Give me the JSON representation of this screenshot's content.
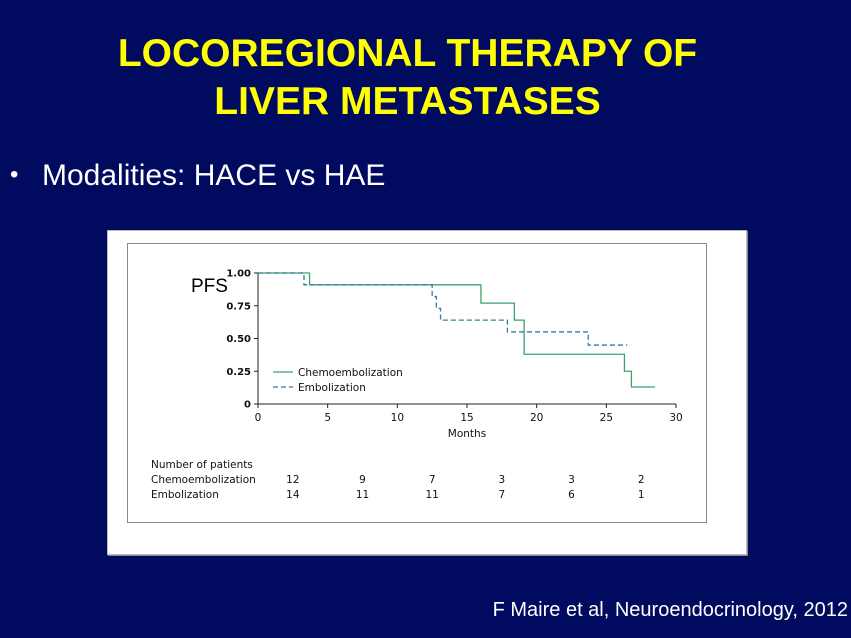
{
  "slide": {
    "title_line1": "LOCOREGIONAL THERAPY OF",
    "title_line2": "LIVER METASTASES",
    "bullet": "Modalities: HACE vs HAE",
    "citation": "F Maire et al, Neuroendocrinology, 2012"
  },
  "chart_data": {
    "type": "line",
    "subtype": "kaplan-meier-step",
    "ylabel": "PFS",
    "xlabel": "Months",
    "xlim": [
      0,
      30
    ],
    "ylim": [
      0,
      1
    ],
    "x_ticks": [
      "0",
      "5",
      "10",
      "15",
      "20",
      "25",
      "30"
    ],
    "y_ticks": [
      "0",
      "0.25",
      "0.50",
      "0.75",
      "1.00"
    ],
    "grid": false,
    "legend": "lower-left",
    "series": [
      {
        "name": "Chemoembolization",
        "color": "#3aa36b",
        "dash": "solid",
        "steps": [
          [
            0,
            1.0
          ],
          [
            3.7,
            0.91
          ],
          [
            16.0,
            0.77
          ],
          [
            18.4,
            0.64
          ],
          [
            19.1,
            0.38
          ],
          [
            26.3,
            0.25
          ],
          [
            26.8,
            0.13
          ],
          [
            28.5,
            0.13
          ]
        ]
      },
      {
        "name": "Embolization",
        "color": "#2f7d9a",
        "dash": "dashed",
        "steps": [
          [
            0,
            1.0
          ],
          [
            3.3,
            0.91
          ],
          [
            12.5,
            0.82
          ],
          [
            12.8,
            0.73
          ],
          [
            13.1,
            0.64
          ],
          [
            17.9,
            0.55
          ],
          [
            23.7,
            0.45
          ],
          [
            26.5,
            0.45
          ]
        ]
      }
    ],
    "risk_table": {
      "title": "Number of patients",
      "rows": [
        {
          "label": "Chemoembolization",
          "values": [
            "12",
            "9",
            "7",
            "3",
            "3",
            "2"
          ]
        },
        {
          "label": "Embolization",
          "values": [
            "14",
            "11",
            "11",
            "7",
            "6",
            "1"
          ]
        }
      ],
      "at_months": [
        2.5,
        7.5,
        12.5,
        17.5,
        22.5,
        27.5
      ]
    }
  }
}
